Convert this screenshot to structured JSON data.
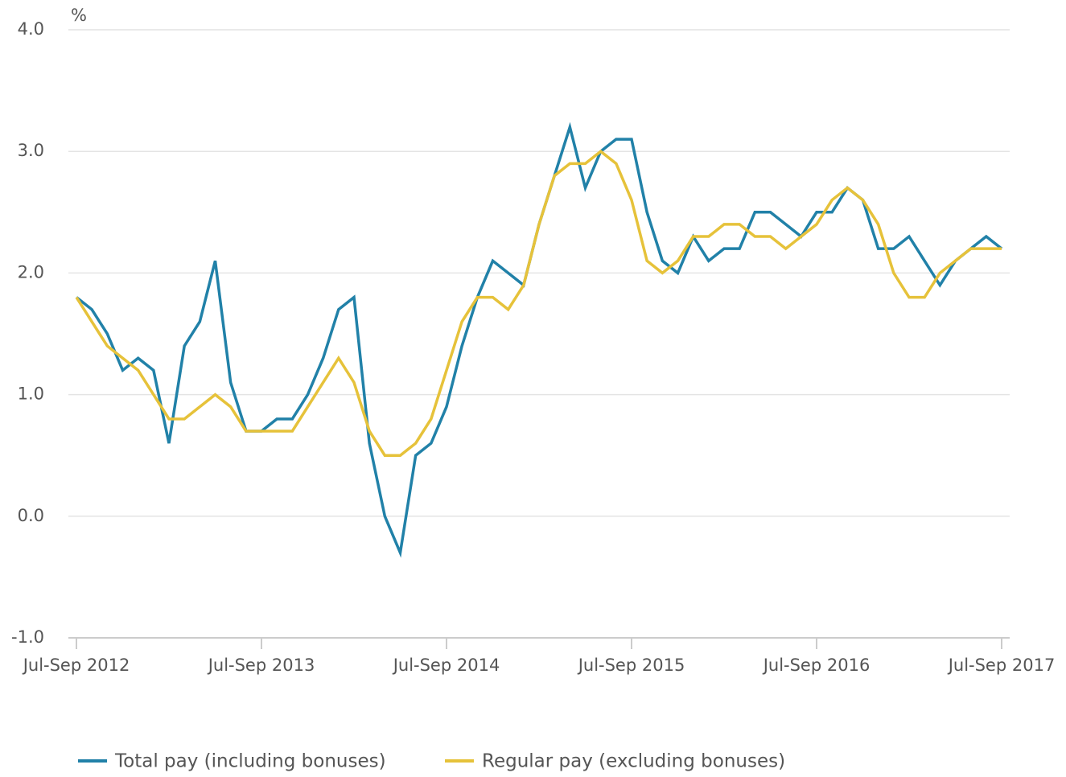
{
  "chart_data": {
    "type": "line",
    "y_label": "%",
    "categories": [
      "Jul-Sep 2012",
      null,
      null,
      null,
      null,
      null,
      null,
      null,
      null,
      null,
      null,
      null,
      "Jul-Sep 2013",
      null,
      null,
      null,
      null,
      null,
      null,
      null,
      null,
      null,
      null,
      null,
      "Jul-Sep 2014",
      null,
      null,
      null,
      null,
      null,
      null,
      null,
      null,
      null,
      null,
      null,
      "Jul-Sep 2015",
      null,
      null,
      null,
      null,
      null,
      null,
      null,
      null,
      null,
      null,
      null,
      "Jul-Sep 2016",
      null,
      null,
      null,
      null,
      null,
      null,
      null,
      null,
      null,
      null,
      null,
      "Jul-Sep 2017"
    ],
    "series": [
      {
        "name": "Total pay (including bonuses)",
        "color": "#2181a8",
        "values": [
          1.8,
          1.7,
          1.5,
          1.2,
          1.3,
          1.2,
          0.6,
          1.4,
          1.6,
          2.1,
          1.1,
          0.7,
          0.7,
          0.8,
          0.8,
          1.0,
          1.3,
          1.7,
          1.8,
          0.6,
          0.0,
          -0.3,
          0.5,
          0.6,
          0.9,
          1.4,
          1.8,
          2.1,
          2.0,
          1.9,
          2.4,
          2.8,
          3.2,
          2.7,
          3.0,
          3.1,
          3.1,
          2.5,
          2.1,
          2.0,
          2.3,
          2.1,
          2.2,
          2.2,
          2.5,
          2.5,
          2.4,
          2.3,
          2.5,
          2.5,
          2.7,
          2.6,
          2.2,
          2.2,
          2.3,
          2.1,
          1.9,
          2.1,
          2.2,
          2.3,
          2.2
        ]
      },
      {
        "name": "Regular pay (excluding bonuses)",
        "color": "#e6c23a",
        "values": [
          1.8,
          1.6,
          1.4,
          1.3,
          1.2,
          1.0,
          0.8,
          0.8,
          0.9,
          1.0,
          0.9,
          0.7,
          0.7,
          0.7,
          0.7,
          0.9,
          1.1,
          1.3,
          1.1,
          0.7,
          0.5,
          0.5,
          0.6,
          0.8,
          1.2,
          1.6,
          1.8,
          1.8,
          1.7,
          1.9,
          2.4,
          2.8,
          2.9,
          2.9,
          3.0,
          2.9,
          2.6,
          2.1,
          2.0,
          2.1,
          2.3,
          2.3,
          2.4,
          2.4,
          2.3,
          2.3,
          2.2,
          2.3,
          2.4,
          2.6,
          2.7,
          2.6,
          2.4,
          2.0,
          1.8,
          1.8,
          2.0,
          2.1,
          2.2,
          2.2,
          2.2
        ]
      }
    ],
    "ylim": [
      -1,
      4
    ],
    "yticks": [
      {
        "value": -1,
        "label": "-1.0"
      },
      {
        "value": 0,
        "label": "0.0"
      },
      {
        "value": 1,
        "label": "1.0"
      },
      {
        "value": 2,
        "label": "2.0"
      },
      {
        "value": 3,
        "label": "3.0"
      },
      {
        "value": 4,
        "label": "4.0"
      }
    ],
    "grid": true,
    "legend": "bottom"
  }
}
